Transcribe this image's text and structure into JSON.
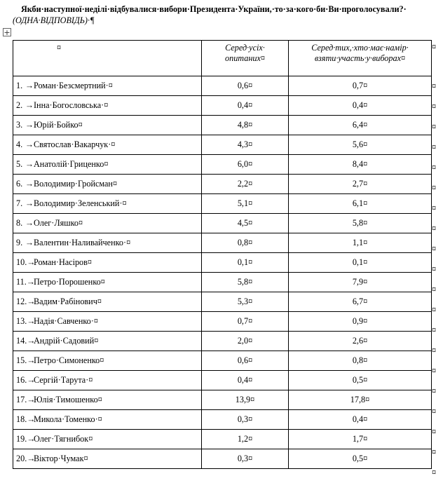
{
  "title": {
    "line1": "Якби·наступної·неділі·відбувалися·вибори·Президента·України,·то·за·кого·би·Ви·проголосували?·",
    "line2": "(ОДНА·ВІДПОВІДЬ)·"
  },
  "marks": {
    "pilcrow": "¶",
    "cell_end": "¤",
    "row_end": "¤",
    "tab": "→"
  },
  "icons": {
    "table_move_handle": "+"
  },
  "table": {
    "header": {
      "col2": [
        "Серед·усіх·",
        "опитаних"
      ],
      "col3": [
        "Серед·тих,·хто·має·намір·",
        "взяти·участь·у·виборах"
      ]
    },
    "rows": [
      {
        "num": "1.",
        "name": "Роман·Безсмертний·",
        "all": "0,6",
        "participants": "0,7"
      },
      {
        "num": "2.",
        "name": "Інна·Богословська·",
        "all": "0,4",
        "participants": "0,4"
      },
      {
        "num": "3.",
        "name": "Юрій·Бойко",
        "all": "4,8",
        "participants": "6,4"
      },
      {
        "num": "4.",
        "name": "Святослав·Вакарчук·",
        "all": "4,3",
        "participants": "5,6"
      },
      {
        "num": "5.",
        "name": "Анатолій·Гриценко",
        "all": "6,0",
        "participants": "8,4"
      },
      {
        "num": "6.",
        "name": "Володимир·Гройсман",
        "all": "2,2",
        "participants": "2,7"
      },
      {
        "num": "7.",
        "name": "Володимир·Зеленський·",
        "all": "5,1",
        "participants": "6,1"
      },
      {
        "num": "8.",
        "name": "Олег·Ляшко",
        "all": "4,5",
        "participants": "5,8"
      },
      {
        "num": "9.",
        "name": "Валентин·Наливайченко·",
        "all": "0,8",
        "participants": "1,1"
      },
      {
        "num": "10.",
        "name": "Роман·Насіров",
        "all": "0,1",
        "participants": "0,1"
      },
      {
        "num": "11.",
        "name": "Петро·Порошенко",
        "all": "5,8",
        "participants": "7,9"
      },
      {
        "num": "12.",
        "name": "Вадим·Рабінович",
        "all": "5,3",
        "participants": "6,7"
      },
      {
        "num": "13.",
        "name": "Надія·Савченко·",
        "all": "0,7",
        "participants": "0,9"
      },
      {
        "num": "14.",
        "name": "Андрій·Садовий",
        "all": "2,0",
        "participants": "2,6"
      },
      {
        "num": "15.",
        "name": "Петро·Симоненко",
        "all": "0,6",
        "participants": "0,8"
      },
      {
        "num": "16.",
        "name": "Сергій·Тарута·",
        "all": "0,4",
        "participants": "0,5"
      },
      {
        "num": "17.",
        "name": "Юлія·Тимошенко",
        "all": "13,9",
        "participants": "17,8"
      },
      {
        "num": "18.",
        "name": "Микола·Томенко·",
        "all": "0,3",
        "participants": "0,4"
      },
      {
        "num": "19.",
        "name": "Олег·Тягнибок",
        "all": "1,2",
        "participants": "1,7"
      },
      {
        "num": "20.",
        "name": "Віктор·Чумак",
        "all": "0,3",
        "participants": "0,5"
      }
    ]
  }
}
